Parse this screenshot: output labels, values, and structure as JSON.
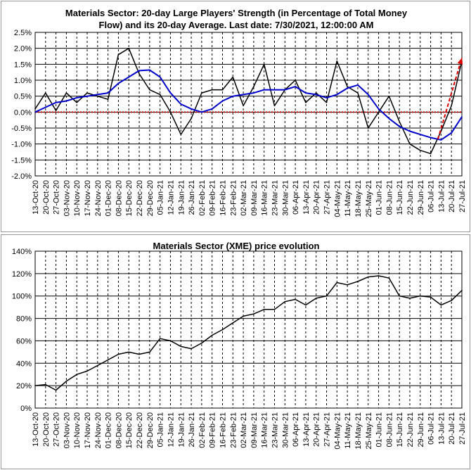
{
  "chart_data": [
    {
      "type": "line",
      "title_lines": [
        "Materials Sector: 20-day Large Players' Strength (in Percentage of Total Money",
        "Flow) and its 20-day Average. Last date: 7/30/2021, 12:00:00 AM"
      ],
      "y_ticks": [
        "2.5%",
        "2.0%",
        "1.5%",
        "1.0%",
        "0.5%",
        "0.0%",
        "-0.5%",
        "-1.0%",
        "-1.5%",
        "-2.0%"
      ],
      "ylim": [
        -2.0,
        2.5
      ],
      "x_ticks": [
        "13-Oct-20",
        "20-Oct-20",
        "27-Oct-20",
        "03-Nov-20",
        "10-Nov-20",
        "17-Nov-20",
        "24-Nov-20",
        "01-Dec-20",
        "08-Dec-20",
        "15-Dec-20",
        "22-Dec-20",
        "29-Dec-20",
        "05-Jan-21",
        "12-Jan-21",
        "19-Jan-21",
        "26-Jan-21",
        "02-Feb-21",
        "09-Feb-21",
        "16-Feb-21",
        "23-Feb-21",
        "02-Mar-21",
        "09-Mar-21",
        "16-Mar-21",
        "23-Mar-21",
        "30-Mar-21",
        "06-Apr-21",
        "13-Apr-21",
        "20-Apr-21",
        "27-Apr-21",
        "04-May-21",
        "11-May-21",
        "18-May-21",
        "25-May-21",
        "01-Jun-21",
        "08-Jun-21",
        "15-Jun-21",
        "22-Jun-21",
        "29-Jun-21",
        "06-Jul-21",
        "13-Jul-21",
        "20-Jul-21",
        "27-Jul-21"
      ],
      "grid": true,
      "zero_line": true,
      "series": [
        {
          "color": "#000000",
          "x": [
            0,
            1,
            2,
            3,
            4,
            5,
            6,
            7,
            8,
            9,
            10,
            11,
            12,
            13,
            14,
            15,
            16,
            17,
            18,
            19,
            20,
            21,
            22,
            23,
            24,
            25,
            26,
            27,
            28,
            29,
            30,
            31,
            32,
            33,
            34,
            35,
            36,
            37,
            38,
            39,
            40,
            41
          ],
          "values": [
            0.1,
            0.6,
            0.05,
            0.6,
            0.3,
            0.6,
            0.5,
            0.4,
            1.8,
            2.0,
            1.2,
            0.7,
            0.55,
            0.0,
            -0.7,
            -0.2,
            0.6,
            0.7,
            0.7,
            1.1,
            0.2,
            0.8,
            1.5,
            0.2,
            0.7,
            1.0,
            0.3,
            0.6,
            0.3,
            1.6,
            0.8,
            0.6,
            -0.5,
            0.0,
            0.5,
            -0.3,
            -1.0,
            -1.2,
            -1.3,
            -0.6,
            0.2,
            1.6
          ]
        },
        {
          "color": "#0000cc",
          "x": [
            0,
            1,
            2,
            3,
            4,
            5,
            6,
            7,
            8,
            9,
            10,
            11,
            12,
            13,
            14,
            15,
            16,
            17,
            18,
            19,
            20,
            21,
            22,
            23,
            24,
            25,
            26,
            27,
            28,
            29,
            30,
            31,
            32,
            33,
            34,
            35,
            36,
            37,
            38,
            39,
            40,
            41
          ],
          "values": [
            0.0,
            0.15,
            0.3,
            0.35,
            0.45,
            0.5,
            0.55,
            0.6,
            0.9,
            1.1,
            1.3,
            1.32,
            1.1,
            0.6,
            0.25,
            0.1,
            0.0,
            0.1,
            0.35,
            0.5,
            0.55,
            0.6,
            0.7,
            0.7,
            0.7,
            0.8,
            0.6,
            0.55,
            0.45,
            0.55,
            0.75,
            0.85,
            0.55,
            0.1,
            -0.2,
            -0.45,
            -0.6,
            -0.7,
            -0.8,
            -0.87,
            -0.65,
            -0.15
          ]
        }
      ],
      "annotation_arrow": {
        "color": "#dd0000",
        "from": [
          38.7,
          -0.85
        ],
        "to": [
          41,
          1.7
        ]
      }
    },
    {
      "type": "line",
      "title": "Materials Sector (XME) price evolution",
      "y_ticks": [
        "140%",
        "120%",
        "100%",
        "80%",
        "60%",
        "40%",
        "20%",
        "0%"
      ],
      "ylim": [
        0,
        140
      ],
      "x_ticks": [
        "13-Oct-20",
        "20-Oct-20",
        "27-Oct-20",
        "03-Nov-20",
        "10-Nov-20",
        "17-Nov-20",
        "24-Nov-20",
        "01-Dec-20",
        "08-Dec-20",
        "15-Dec-20",
        "22-Dec-20",
        "29-Dec-20",
        "05-Jan-21",
        "12-Jan-21",
        "19-Jan-21",
        "26-Jan-21",
        "02-Feb-21",
        "09-Feb-21",
        "16-Feb-21",
        "23-Feb-21",
        "02-Mar-21",
        "09-Mar-21",
        "16-Mar-21",
        "23-Mar-21",
        "30-Mar-21",
        "06-Apr-21",
        "13-Apr-21",
        "20-Apr-21",
        "27-Apr-21",
        "04-May-21",
        "11-May-21",
        "18-May-21",
        "25-May-21",
        "01-Jun-21",
        "08-Jun-21",
        "15-Jun-21",
        "22-Jun-21",
        "29-Jun-21",
        "06-Jul-21",
        "13-Jul-21",
        "20-Jul-21",
        "27-Jul-21"
      ],
      "grid": true,
      "series": [
        {
          "color": "#000000",
          "x": [
            0,
            1,
            2,
            3,
            4,
            5,
            6,
            7,
            8,
            9,
            10,
            11,
            12,
            13,
            14,
            15,
            16,
            17,
            18,
            19,
            20,
            21,
            22,
            23,
            24,
            25,
            26,
            27,
            28,
            29,
            30,
            31,
            32,
            33,
            34,
            35,
            36,
            37,
            38,
            39,
            40,
            41
          ],
          "values": [
            20,
            21,
            16,
            24,
            30,
            33,
            38,
            43,
            48,
            50,
            48,
            50,
            62,
            60,
            55,
            53,
            58,
            65,
            70,
            76,
            82,
            84,
            88,
            88,
            95,
            97,
            92,
            98,
            100,
            112,
            110,
            113,
            117,
            118,
            116,
            100,
            98,
            100,
            99,
            92,
            96,
            105
          ]
        }
      ]
    }
  ]
}
